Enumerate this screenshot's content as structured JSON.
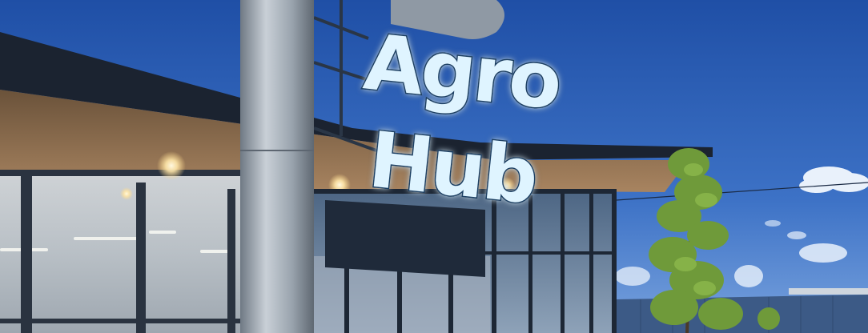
{
  "sign": {
    "line1": "Agro",
    "line2": "Hub"
  },
  "colors": {
    "sky_top": "#1f4fa6",
    "sky_bottom": "#6a96d8",
    "sign_glow": "#bfe6ff",
    "sign_face": "#dff4ff",
    "roof_dark": "#1b2330",
    "soffit_wood": "#8a6d4e",
    "glass": "#6f86a0",
    "pillar": "#a9b3bd",
    "tree": "#6f9a3a"
  }
}
